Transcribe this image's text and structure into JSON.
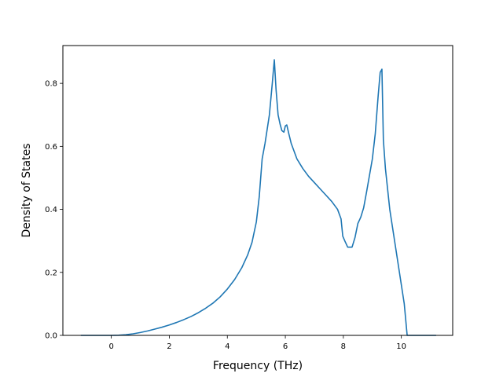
{
  "chart_data": {
    "type": "line",
    "title": "",
    "xlabel": "Frequency (THz)",
    "ylabel": "Density of States",
    "xlim": [
      -1.67,
      11.77
    ],
    "ylim": [
      0.0,
      0.92
    ],
    "grid": false,
    "x_ticks": [
      0,
      2,
      4,
      6,
      8,
      10
    ],
    "x_tick_labels": [
      "0",
      "2",
      "4",
      "6",
      "8",
      "10"
    ],
    "y_ticks": [
      0.0,
      0.2,
      0.4,
      0.6,
      0.8
    ],
    "y_tick_labels": [
      "0.0",
      "0.2",
      "0.4",
      "0.6",
      "0.8"
    ],
    "series": [
      {
        "color": "#1f77b4",
        "x": [
          -1.05,
          -0.5,
          0.0,
          0.25,
          0.5,
          0.75,
          1.0,
          1.25,
          1.5,
          1.75,
          2.0,
          2.25,
          2.5,
          2.75,
          3.0,
          3.25,
          3.5,
          3.75,
          4.0,
          4.25,
          4.5,
          4.7,
          4.85,
          5.0,
          5.1,
          5.2,
          5.3,
          5.45,
          5.55,
          5.62,
          5.68,
          5.75,
          5.82,
          5.88,
          5.95,
          6.0,
          6.05,
          6.12,
          6.2,
          6.4,
          6.6,
          6.8,
          7.0,
          7.2,
          7.4,
          7.6,
          7.8,
          7.92,
          7.98,
          8.05,
          8.15,
          8.3,
          8.4,
          8.5,
          8.6,
          8.7,
          8.8,
          9.0,
          9.1,
          9.2,
          9.27,
          9.33,
          9.38,
          9.45,
          9.6,
          9.8,
          10.0,
          10.1,
          10.15,
          10.2,
          10.5,
          11.2
        ],
        "y": [
          0.0,
          0.0,
          0.0,
          0.0005,
          0.002,
          0.005,
          0.009,
          0.014,
          0.02,
          0.026,
          0.033,
          0.041,
          0.05,
          0.06,
          0.072,
          0.086,
          0.102,
          0.122,
          0.147,
          0.177,
          0.215,
          0.255,
          0.295,
          0.36,
          0.44,
          0.56,
          0.61,
          0.7,
          0.8,
          0.875,
          0.78,
          0.7,
          0.67,
          0.65,
          0.645,
          0.665,
          0.668,
          0.64,
          0.61,
          0.56,
          0.53,
          0.505,
          0.485,
          0.465,
          0.445,
          0.425,
          0.4,
          0.37,
          0.315,
          0.3,
          0.28,
          0.28,
          0.31,
          0.355,
          0.375,
          0.405,
          0.455,
          0.56,
          0.64,
          0.76,
          0.835,
          0.845,
          0.62,
          0.53,
          0.4,
          0.28,
          0.16,
          0.1,
          0.05,
          0.0,
          0.0,
          0.0
        ]
      }
    ]
  }
}
